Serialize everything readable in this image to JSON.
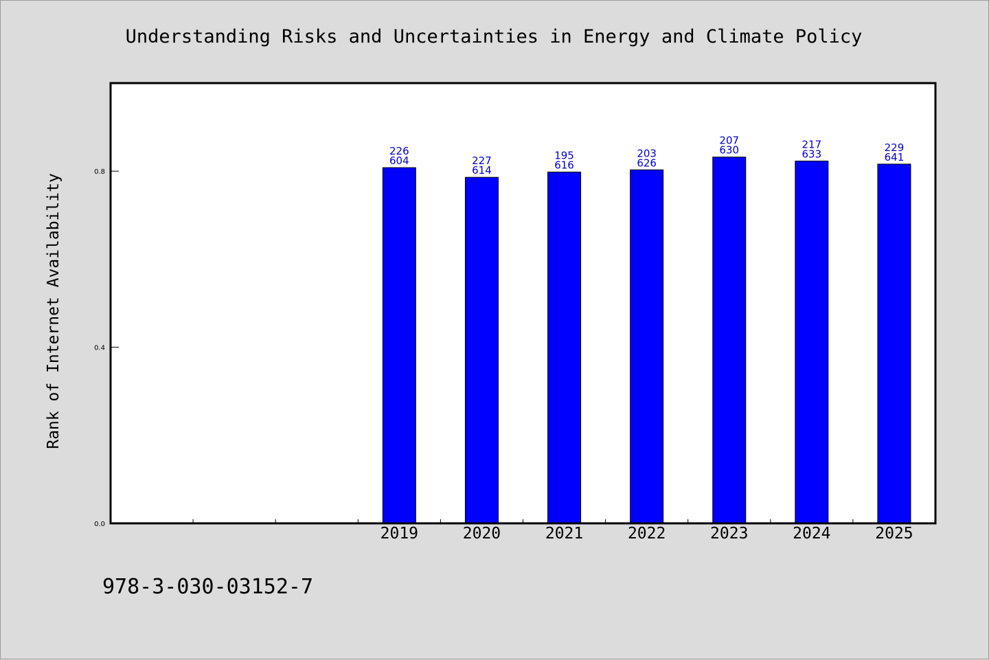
{
  "chart_data": {
    "type": "bar",
    "title": "Understanding Risks and Uncertainties in Energy and Climate Policy",
    "xlabel": "",
    "ylabel": "Rank of Internet Availability",
    "ylim": [
      0.0,
      1.0
    ],
    "yticks": [
      "0.0",
      "0.4",
      "0.8"
    ],
    "x_slots": 10,
    "categories": [
      "2019",
      "2020",
      "2021",
      "2022",
      "2023",
      "2024",
      "2025"
    ],
    "category_slots": [
      3,
      4,
      5,
      6,
      7,
      8,
      9
    ],
    "values": [
      0.808,
      0.786,
      0.798,
      0.803,
      0.832,
      0.823,
      0.816
    ],
    "data_labels": [
      [
        "226",
        "604"
      ],
      [
        "227",
        "614"
      ],
      [
        "195",
        "616"
      ],
      [
        "203",
        "626"
      ],
      [
        "207",
        "630"
      ],
      [
        "217",
        "633"
      ],
      [
        "229",
        "641"
      ]
    ],
    "bar_color": "#0000ff",
    "label_color": "#0000cc",
    "grid": false,
    "legend": "none"
  },
  "footer": {
    "code": "978-3-030-03152-7"
  }
}
